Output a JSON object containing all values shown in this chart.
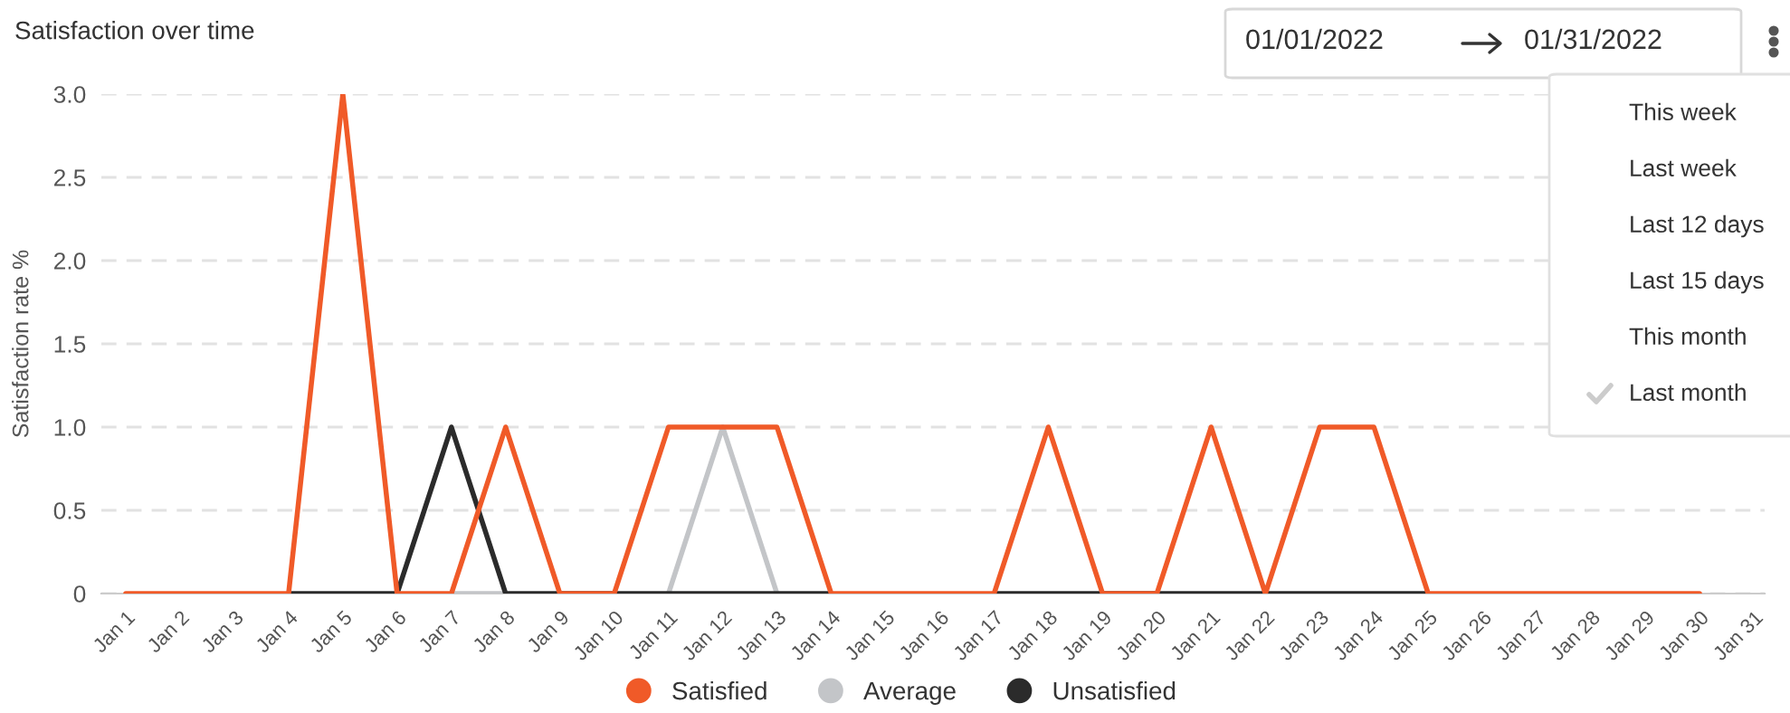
{
  "chart_data": {
    "type": "line",
    "title": "Satisfaction over time",
    "ylabel": "Satisfaction rate %",
    "categories": [
      "Jan 1",
      "Jan 2",
      "Jan 3",
      "Jan 4",
      "Jan 5",
      "Jan 6",
      "Jan 7",
      "Jan 8",
      "Jan 9",
      "Jan 10",
      "Jan 11",
      "Jan 12",
      "Jan 13",
      "Jan 14",
      "Jan 15",
      "Jan 16",
      "Jan 17",
      "Jan 18",
      "Jan 19",
      "Jan 20",
      "Jan 21",
      "Jan 22",
      "Jan 23",
      "Jan 24",
      "Jan 25",
      "Jan 26",
      "Jan 27",
      "Jan 28",
      "Jan 29",
      "Jan 30",
      "Jan 31"
    ],
    "series": [
      {
        "name": "Average",
        "color": "#c3c5c8",
        "values": [
          null,
          null,
          null,
          null,
          null,
          null,
          0,
          0,
          null,
          null,
          0,
          1,
          0,
          null,
          null,
          null,
          null,
          null,
          null,
          null,
          null,
          null,
          null,
          null,
          null,
          null,
          null,
          null,
          null,
          null,
          null
        ]
      },
      {
        "name": "Unsatisfied",
        "color": "#2b2b2b",
        "values": [
          null,
          null,
          null,
          0,
          0,
          0,
          1,
          0,
          0,
          0,
          0,
          0,
          0,
          0,
          null,
          null,
          0,
          0,
          0,
          0,
          0,
          0,
          0,
          0,
          0,
          null,
          null,
          null,
          null,
          null,
          null
        ]
      },
      {
        "name": "Satisfied",
        "color": "#f05a28",
        "values": [
          0,
          0,
          0,
          0,
          3,
          0,
          0,
          1,
          0,
          0,
          1,
          1,
          1,
          0,
          0,
          0,
          0,
          1,
          0,
          0,
          1,
          0,
          1,
          1,
          0,
          0,
          0,
          0,
          0,
          0,
          null
        ]
      }
    ],
    "ylim": [
      0,
      3
    ],
    "yticks": [
      0,
      {
        "value": 0.5,
        "label": "0.5"
      },
      {
        "value": 1,
        "label": "1.0"
      },
      {
        "value": 1.5,
        "label": "1.5"
      },
      {
        "value": 2,
        "label": "2.0"
      },
      {
        "value": 2.5,
        "label": "2.5"
      },
      {
        "value": 3,
        "label": "3.0"
      }
    ],
    "grid": "y",
    "line_style": "solid",
    "legend": "bottom",
    "annotations": [
      "01/01/2022",
      "01/31/2022",
      "This week",
      "Last week",
      "Last 12 days",
      "Last 15 days",
      "This month",
      "Last month"
    ]
  }
}
